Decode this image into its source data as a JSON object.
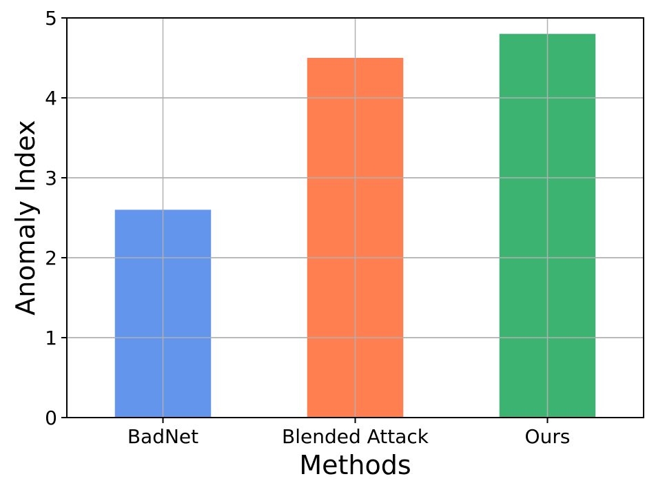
{
  "chart_data": {
    "type": "bar",
    "categories": [
      "BadNet",
      "Blended Attack",
      "Ours"
    ],
    "values": [
      2.6,
      4.5,
      4.8
    ],
    "colors": [
      "#6495ED",
      "#FF7F50",
      "#3CB371"
    ],
    "title": "",
    "xlabel": "Methods",
    "ylabel": "Anomaly Index",
    "ylim": [
      0,
      5
    ],
    "yticks": [
      0,
      1,
      2,
      3,
      4,
      5
    ],
    "grid": true
  }
}
